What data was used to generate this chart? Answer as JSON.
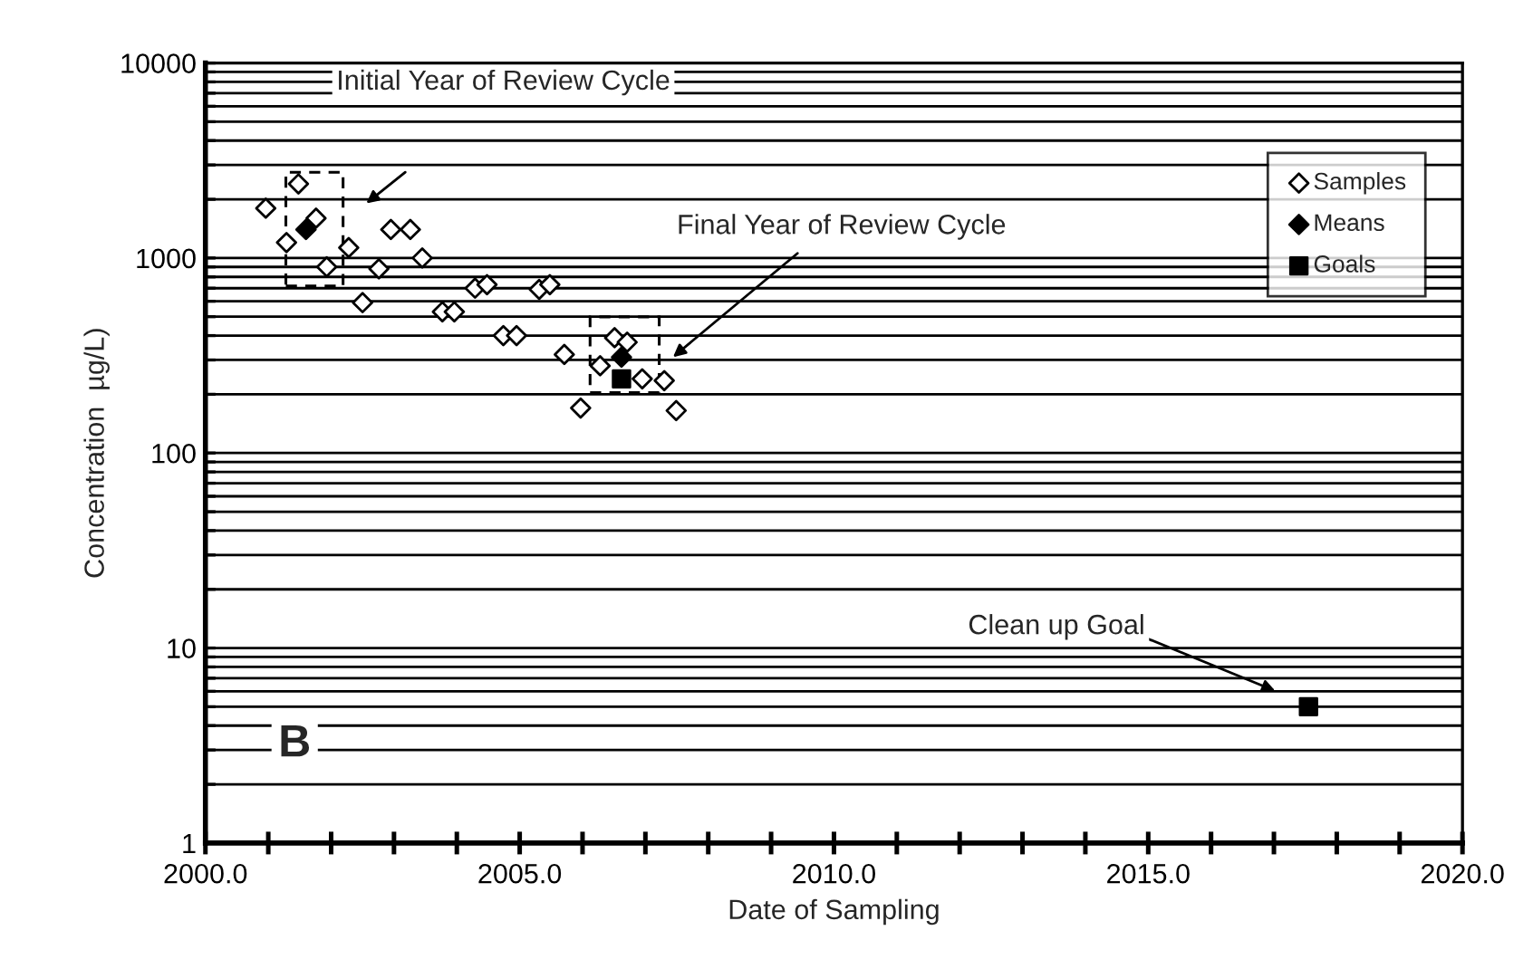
{
  "chart_data": {
    "type": "scatter",
    "xlabel": "Date of Sampling",
    "ylabel": "Concentration  µg/L)",
    "xlim": [
      2000,
      2020
    ],
    "xticks": [
      {
        "value": 2000,
        "label": "2000.0"
      },
      {
        "value": 2001,
        "label": null
      },
      {
        "value": 2002,
        "label": null
      },
      {
        "value": 2003,
        "label": null
      },
      {
        "value": 2004,
        "label": null
      },
      {
        "value": 2005,
        "label": "2005.0"
      },
      {
        "value": 2006,
        "label": null
      },
      {
        "value": 2007,
        "label": null
      },
      {
        "value": 2008,
        "label": null
      },
      {
        "value": 2009,
        "label": null
      },
      {
        "value": 2010,
        "label": "2010.0"
      },
      {
        "value": 2011,
        "label": null
      },
      {
        "value": 2012,
        "label": null
      },
      {
        "value": 2013,
        "label": null
      },
      {
        "value": 2014,
        "label": null
      },
      {
        "value": 2015,
        "label": "2015.0"
      },
      {
        "value": 2016,
        "label": null
      },
      {
        "value": 2017,
        "label": null
      },
      {
        "value": 2018,
        "label": null
      },
      {
        "value": 2019,
        "label": null
      },
      {
        "value": 2020,
        "label": "2020.0"
      }
    ],
    "log": "y",
    "ylim": [
      1,
      10000
    ],
    "yticks": [
      1,
      {
        "value": 2,
        "label": null
      },
      {
        "value": 3,
        "label": null
      },
      {
        "value": 4,
        "label": null
      },
      {
        "value": 5,
        "label": null
      },
      {
        "value": 6,
        "label": null
      },
      {
        "value": 7,
        "label": null
      },
      {
        "value": 8,
        "label": null
      },
      {
        "value": 9,
        "label": null
      },
      10,
      {
        "value": 20,
        "label": null
      },
      {
        "value": 30,
        "label": null
      },
      {
        "value": 40,
        "label": null
      },
      {
        "value": 50,
        "label": null
      },
      {
        "value": 60,
        "label": null
      },
      {
        "value": 70,
        "label": null
      },
      {
        "value": 80,
        "label": null
      },
      {
        "value": 90,
        "label": null
      },
      100,
      {
        "value": 200,
        "label": null
      },
      {
        "value": 300,
        "label": null
      },
      {
        "value": 400,
        "label": null
      },
      {
        "value": 500,
        "label": null
      },
      {
        "value": 600,
        "label": null
      },
      {
        "value": 700,
        "label": null
      },
      {
        "value": 800,
        "label": null
      },
      {
        "value": 900,
        "label": null
      },
      1000,
      {
        "value": 2000,
        "label": null
      },
      {
        "value": 3000,
        "label": null
      },
      {
        "value": 4000,
        "label": null
      },
      {
        "value": 5000,
        "label": null
      },
      {
        "value": 6000,
        "label": null
      },
      {
        "value": 7000,
        "label": null
      },
      {
        "value": 8000,
        "label": null
      },
      {
        "value": 9000,
        "label": null
      },
      10000
    ],
    "grid": "y",
    "legend": "top right",
    "series": [
      {
        "name": "Samples",
        "color": "#ffffff",
        "marker": "diamond",
        "x": [
          2000.96,
          2001.48,
          2001.29,
          2001.76,
          2001.93,
          2002.28,
          2002.5,
          2002.76,
          2002.95,
          2003.26,
          2003.45,
          2003.77,
          2003.96,
          2004.29,
          2004.48,
          2004.74,
          2004.95,
          2005.31,
          2005.48,
          2005.71,
          2005.97,
          2006.28,
          2006.51,
          2006.71,
          2006.95,
          2007.3,
          2007.49
        ],
        "values": [
          1800,
          2400,
          1200,
          1600,
          900,
          1130,
          590,
          880,
          1400,
          1400,
          1000,
          530,
          530,
          700,
          730,
          400,
          400,
          690,
          730,
          320,
          170,
          280,
          390,
          370,
          240,
          235,
          165
        ]
      },
      {
        "name": "Means",
        "color": "#000000",
        "marker": "diamond",
        "x": [
          2001.6,
          2006.62
        ],
        "values": [
          1400,
          310
        ]
      },
      {
        "name": "Goals",
        "color": "#000000",
        "marker": "square",
        "x": [
          2006.62,
          2017.55
        ],
        "values": [
          240,
          5
        ]
      }
    ],
    "annotations": [
      "Initial Year of Review Cycle",
      "Final Year of Review Cycle",
      "Clean up Goal",
      "B"
    ]
  }
}
